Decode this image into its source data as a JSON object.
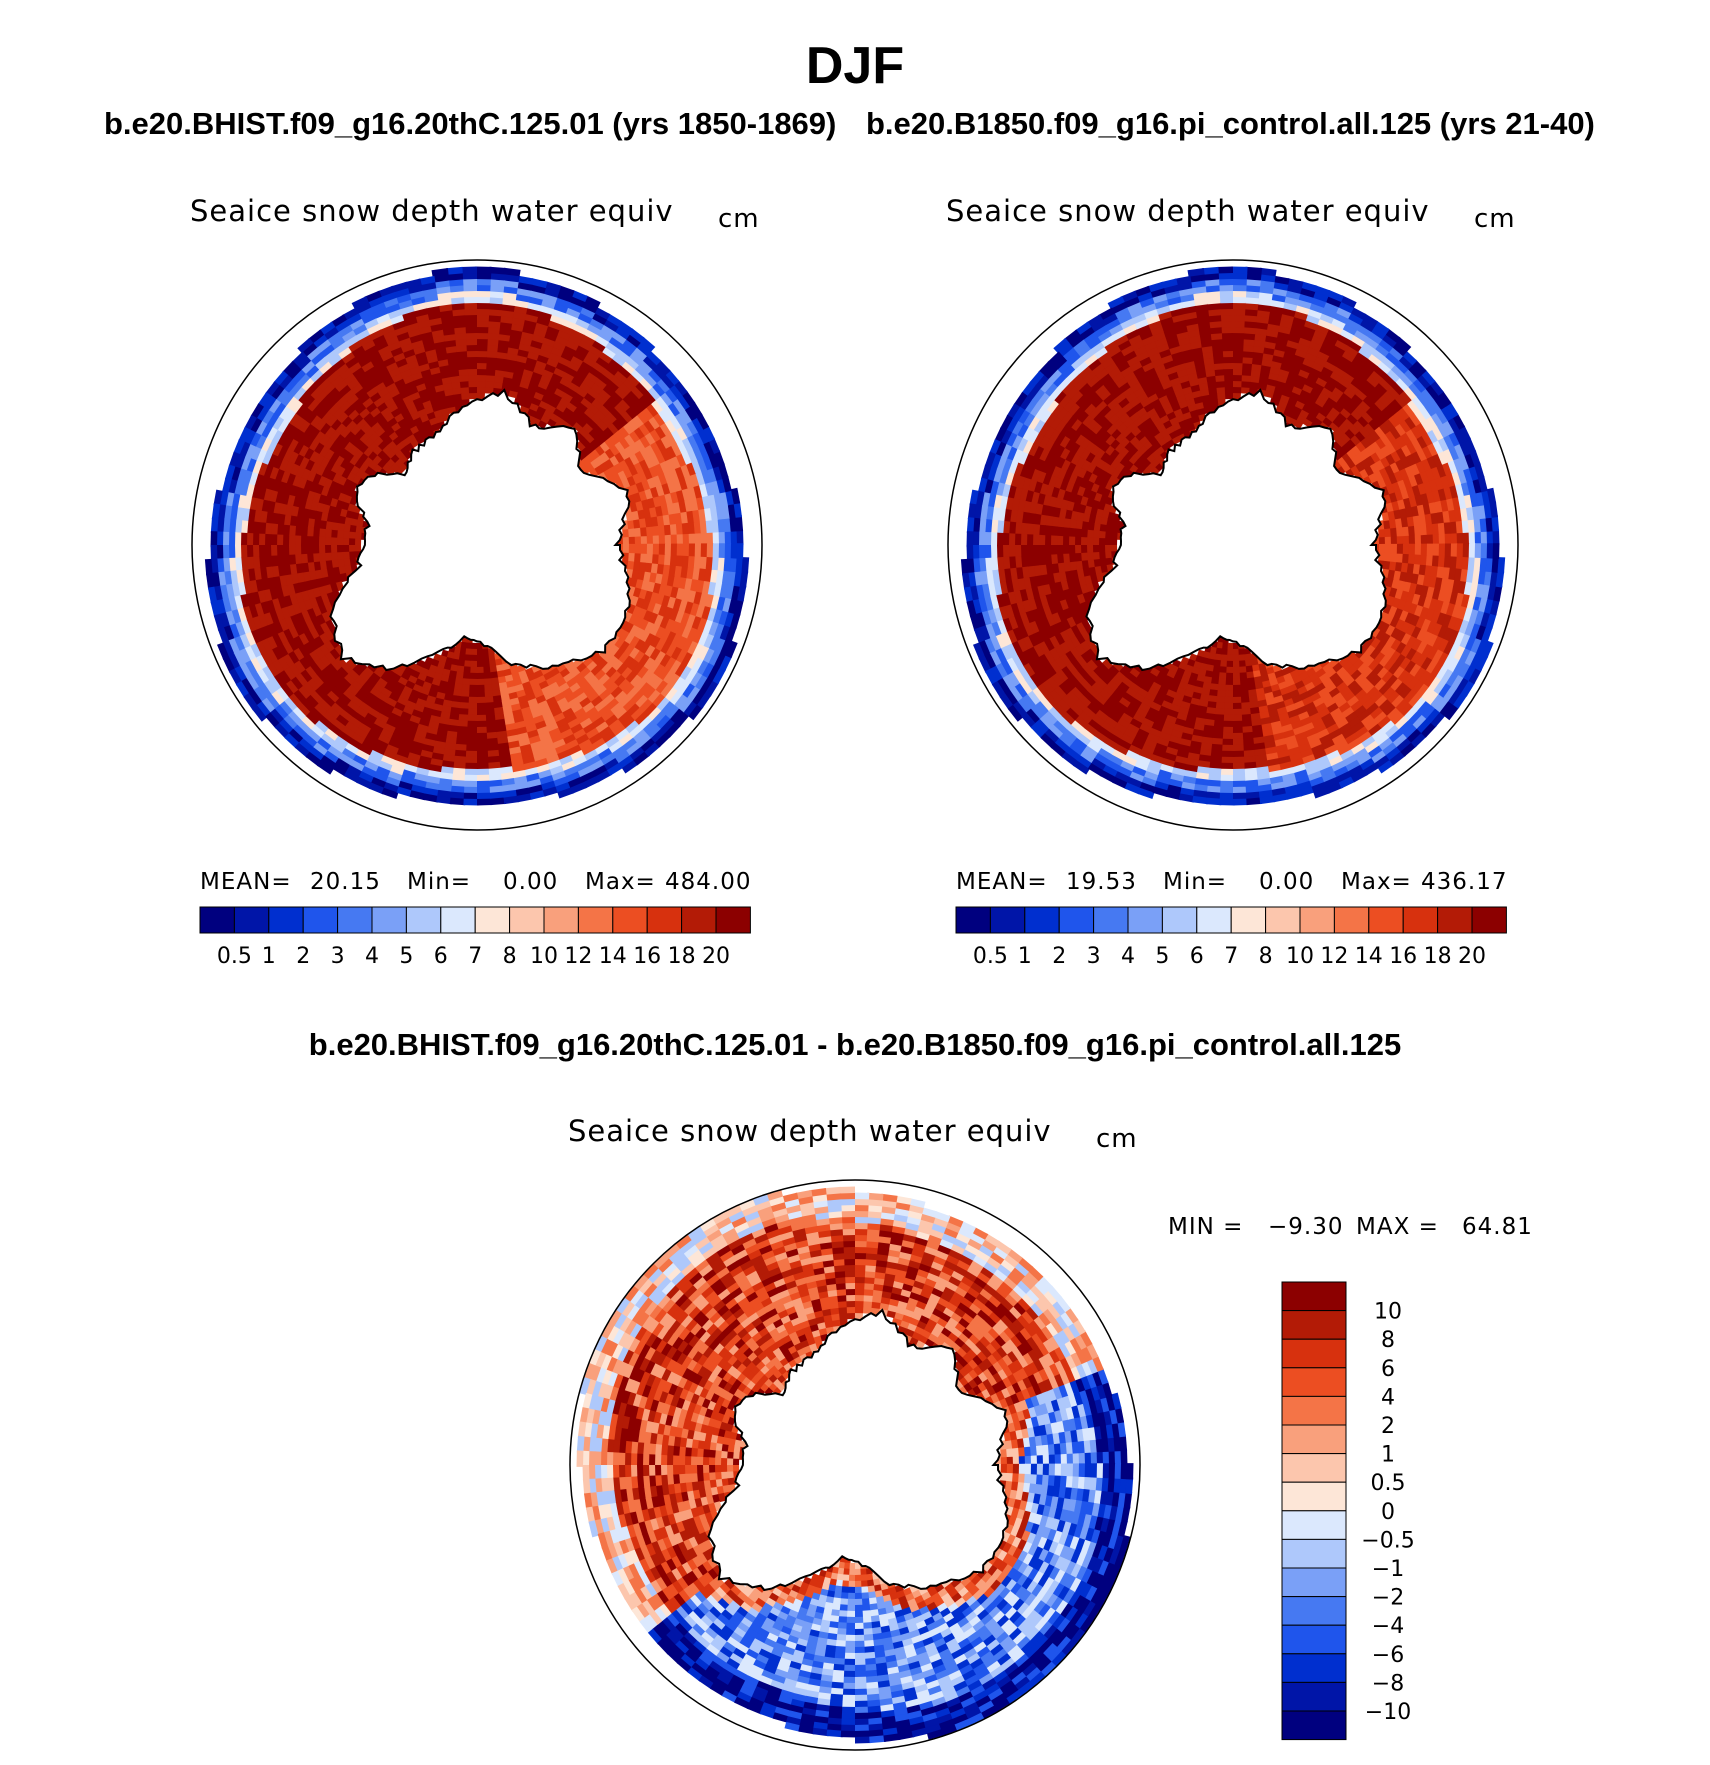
{
  "header": {
    "season": "DJF",
    "case_label": "b.e20.BHIST.f09_g16.20thC.125.01 (yrs 1850-1869)",
    "control_label": "b.e20.B1850.f09_g16.pi_control.all.125 (yrs 21-40)",
    "diff_label": "b.e20.BHIST.f09_g16.20thC.125.01 - b.e20.B1850.f09_g16.pi_control.all.125"
  },
  "panels": [
    {
      "id": "case",
      "variable": "Seaice snow depth water equiv",
      "units": "cm",
      "stats": {
        "mean_label": "MEAN=",
        "mean": "20.15",
        "min_label": "Min=",
        "min": "0.00",
        "max_label": "Max=",
        "max": "484.00"
      },
      "pattern": "case"
    },
    {
      "id": "control",
      "variable": "Seaice snow depth water equiv",
      "units": "cm",
      "stats": {
        "mean_label": "MEAN=",
        "mean": "19.53",
        "min_label": "Min=",
        "min": "0.00",
        "max_label": "Max=",
        "max": "436.17"
      },
      "pattern": "control"
    },
    {
      "id": "difference",
      "variable": "Seaice snow depth water equiv",
      "units": "cm",
      "stats": {
        "min_label": "MIN =",
        "min": "−9.30",
        "max_label": "MAX =",
        "max": "64.81"
      },
      "pattern": "difference"
    }
  ],
  "colorbar_main": {
    "colors": [
      "#00007f",
      "#0015a8",
      "#002fcf",
      "#1f55ec",
      "#4679f2",
      "#7aa0f7",
      "#aec8fb",
      "#dbe8fd",
      "#fde6d7",
      "#fcc6ad",
      "#f9a07c",
      "#f47447",
      "#ec4e22",
      "#d7310e",
      "#b31b06",
      "#8c0000"
    ],
    "labels": [
      "0.5",
      "1",
      "2",
      "3",
      "4",
      "5",
      "6",
      "7",
      "8",
      "10",
      "12",
      "14",
      "16",
      "18",
      "20"
    ]
  },
  "colorbar_diff": {
    "colors": [
      "#8c0000",
      "#b31b06",
      "#d7310e",
      "#ec4e22",
      "#f47447",
      "#f9a07c",
      "#fcc6ad",
      "#fde6d7",
      "#dbe8fd",
      "#aec8fb",
      "#7aa0f7",
      "#4679f2",
      "#1f55ec",
      "#002fcf",
      "#0015a8",
      "#00007f"
    ],
    "labels": [
      "10",
      "8",
      "6",
      "4",
      "2",
      "1",
      "0.5",
      "0",
      "−0.5",
      "−1",
      "−2",
      "−4",
      "−6",
      "−8",
      "−10"
    ]
  }
}
